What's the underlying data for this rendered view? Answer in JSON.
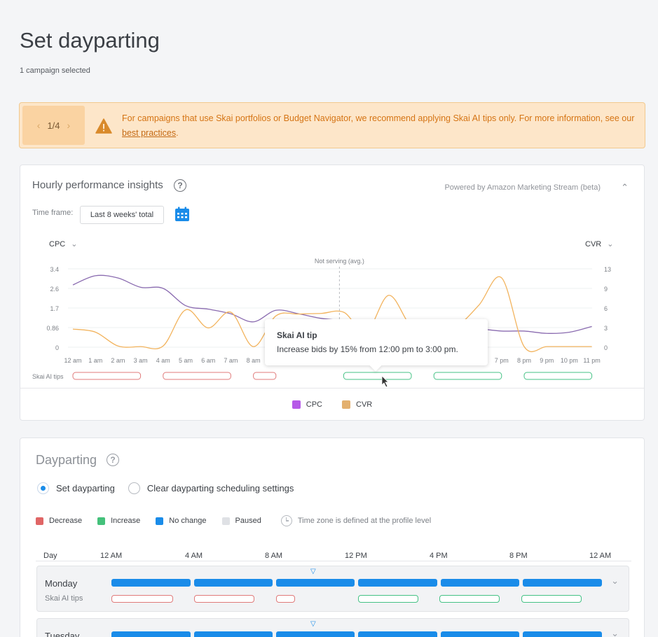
{
  "page": {
    "title": "Set dayparting",
    "subtitle": "1 campaign selected"
  },
  "banner": {
    "pager": "1/4",
    "text": "For campaigns that use Skai portfolios or Budget Navigator, we recommend applying Skai AI tips only. For more information, see our",
    "link": "best practices",
    "suffix": ".",
    "color": "#d57414"
  },
  "insights": {
    "title": "Hourly performance insights",
    "powered": "Powered by Amazon Marketing Stream (beta)",
    "timeframe_label": "Time frame:",
    "timeframe_value": "Last 8 weeks' total",
    "left_metric": "CPC",
    "right_metric": "CVR",
    "not_serving": "Not serving (avg.)",
    "tips_label": "Skai AI tips",
    "tooltip_title": "Skai AI tip",
    "tooltip_body": "Increase bids by 15% from 12:00 pm to 3:00 pm.",
    "legend": [
      {
        "name": "CPC",
        "color": "#b65ae8"
      },
      {
        "name": "CVR",
        "color": "#e3b06f"
      }
    ]
  },
  "chart_data": {
    "type": "line",
    "x": [
      "12 am",
      "1 am",
      "2 am",
      "3 am",
      "4 am",
      "5 am",
      "6 am",
      "7 am",
      "8 am",
      "9 am",
      "10 am",
      "11 am",
      "12 pm",
      "1 pm",
      "2 pm",
      "3 pm",
      "4 pm",
      "5 pm",
      "6 pm",
      "7 pm",
      "8 pm",
      "9 pm",
      "10 pm",
      "11 pm"
    ],
    "x_tick_labels": [
      "12 am",
      "1 am",
      "2 am",
      "3 am",
      "4 am",
      "5 am",
      "6 am",
      "7 am",
      "8 am",
      "7 pm",
      "8 pm",
      "9 pm",
      "10 pm",
      "11 pm"
    ],
    "y_left_ticks": [
      "3.4",
      "2.6",
      "1.7",
      "0.86",
      "0"
    ],
    "y_right_ticks": [
      "13",
      "9",
      "6",
      "3",
      "0"
    ],
    "ylim_left": [
      0,
      3.4
    ],
    "ylim_right": [
      0,
      13
    ],
    "series": [
      {
        "name": "CPC",
        "axis": "left",
        "color": "#8a6bb0",
        "values": [
          2.7,
          3.1,
          3.0,
          2.6,
          2.55,
          1.8,
          1.65,
          1.45,
          1.1,
          1.6,
          1.45,
          1.25,
          1.15,
          1.0,
          1.05,
          1.0,
          0.95,
          0.85,
          0.8,
          0.7,
          0.7,
          0.6,
          0.65,
          0.9
        ]
      },
      {
        "name": "CVR",
        "axis": "right",
        "color": "#f2b35d",
        "values": [
          3,
          2.5,
          0.2,
          0.1,
          0.2,
          6.2,
          3.2,
          5.8,
          0.1,
          5.2,
          5.5,
          5.6,
          5.8,
          2.5,
          8.6,
          3.5,
          3.2,
          3.5,
          7.0,
          11.5,
          0.1,
          0.1,
          0.1,
          0.1
        ]
      }
    ],
    "not_serving_hour": 12,
    "tips": [
      {
        "start": 0,
        "end": 3,
        "kind": "red"
      },
      {
        "start": 4,
        "end": 7,
        "kind": "red"
      },
      {
        "start": 8,
        "end": 9,
        "kind": "red"
      },
      {
        "start": 12,
        "end": 15,
        "kind": "green"
      },
      {
        "start": 16,
        "end": 19,
        "kind": "green"
      },
      {
        "start": 20,
        "end": 23,
        "kind": "green"
      }
    ]
  },
  "dayparting": {
    "title": "Dayparting",
    "radio_set": "Set dayparting",
    "radio_clear": "Clear dayparting scheduling settings",
    "legend": [
      {
        "label": "Decrease",
        "color": "#e06666"
      },
      {
        "label": "Increase",
        "color": "#44c17b"
      },
      {
        "label": "No change",
        "color": "#1a8ce9"
      },
      {
        "label": "Paused",
        "color": "#dfe1e5"
      }
    ],
    "timezone_note": "Time zone is defined at the profile level",
    "day_col": "Day",
    "hours": [
      "12 AM",
      "4 AM",
      "8 AM",
      "12 PM",
      "4 PM",
      "8 PM",
      "12 AM"
    ],
    "tips_label": "Skai AI tips",
    "days": [
      {
        "name": "Monday"
      },
      {
        "name": "Tuesday"
      }
    ]
  }
}
